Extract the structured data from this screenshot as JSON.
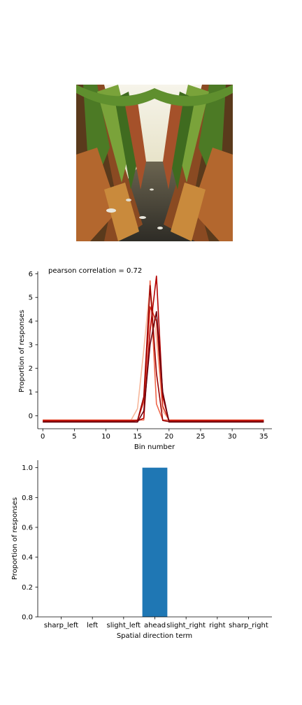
{
  "photo": {
    "description_icon": "cornfield-path-photo",
    "colors": {
      "sky": "#f4f1e6",
      "leaf_dark": "#3f6b1f",
      "leaf_light": "#8fb04a",
      "stalk": "#a5512a",
      "soil": "#3a3830"
    }
  },
  "chart_data": [
    {
      "type": "line",
      "title": "pearson correlation = 0.72",
      "xlabel": "Bin number",
      "ylabel": "Proportion of responses",
      "xlim": [
        -0.8,
        36.3
      ],
      "ylim": [
        -0.55,
        6.1
      ],
      "xticks": [
        "0",
        "5",
        "10",
        "15",
        "20",
        "25",
        "30",
        "35"
      ],
      "yticks": [
        "0",
        "1",
        "2",
        "3",
        "4",
        "5",
        "6"
      ],
      "grid": false,
      "legend": "none",
      "x": [
        0,
        1,
        2,
        3,
        4,
        5,
        6,
        7,
        8,
        9,
        10,
        11,
        12,
        13,
        14,
        15,
        16,
        17,
        18,
        19,
        20,
        21,
        22,
        23,
        24,
        25,
        26,
        27,
        28,
        29,
        30,
        31,
        32,
        33,
        34,
        35
      ],
      "series": [
        {
          "color": "#f7b79b",
          "values": [
            -0.18,
            -0.18,
            -0.18,
            -0.18,
            -0.18,
            -0.18,
            -0.18,
            -0.18,
            -0.18,
            -0.18,
            -0.18,
            -0.18,
            -0.18,
            -0.18,
            -0.18,
            0.3,
            2.8,
            5.5,
            3.2,
            0.2,
            -0.18,
            -0.18,
            -0.18,
            -0.18,
            -0.18,
            -0.18,
            -0.18,
            -0.18,
            -0.18,
            -0.18,
            -0.18,
            -0.18,
            -0.18,
            -0.18,
            -0.18,
            -0.18
          ]
        },
        {
          "color": "#ef6548",
          "values": [
            -0.18,
            -0.18,
            -0.18,
            -0.18,
            -0.18,
            -0.18,
            -0.18,
            -0.18,
            -0.18,
            -0.18,
            -0.18,
            -0.18,
            -0.18,
            -0.18,
            -0.18,
            -0.18,
            -0.18,
            5.7,
            0.5,
            -0.18,
            -0.18,
            -0.18,
            -0.18,
            -0.18,
            -0.18,
            -0.18,
            -0.18,
            -0.18,
            -0.18,
            -0.18,
            -0.18,
            -0.18,
            -0.18,
            -0.18,
            -0.18,
            -0.18
          ]
        },
        {
          "color": "#d7301f",
          "values": [
            -0.2,
            -0.2,
            -0.2,
            -0.2,
            -0.2,
            -0.2,
            -0.2,
            -0.2,
            -0.2,
            -0.2,
            -0.2,
            -0.2,
            -0.2,
            -0.2,
            -0.2,
            -0.2,
            0.6,
            4.6,
            4.0,
            0.4,
            -0.2,
            -0.2,
            -0.2,
            -0.2,
            -0.2,
            -0.2,
            -0.2,
            -0.2,
            -0.2,
            -0.2,
            -0.2,
            -0.2,
            -0.2,
            -0.2,
            -0.2,
            -0.2
          ]
        },
        {
          "color": "#b30000",
          "values": [
            -0.22,
            -0.22,
            -0.22,
            -0.22,
            -0.22,
            -0.22,
            -0.22,
            -0.22,
            -0.22,
            -0.22,
            -0.22,
            -0.22,
            -0.22,
            -0.22,
            -0.22,
            -0.22,
            -0.1,
            3.6,
            5.9,
            0.8,
            -0.22,
            -0.22,
            -0.22,
            -0.22,
            -0.22,
            -0.22,
            -0.22,
            -0.22,
            -0.22,
            -0.22,
            -0.22,
            -0.22,
            -0.22,
            -0.22,
            -0.22,
            -0.22
          ]
        },
        {
          "color": "#990000",
          "values": [
            -0.25,
            -0.25,
            -0.25,
            -0.25,
            -0.25,
            -0.25,
            -0.25,
            -0.25,
            -0.25,
            -0.25,
            -0.25,
            -0.25,
            -0.25,
            -0.25,
            -0.25,
            -0.2,
            0.8,
            5.5,
            1.8,
            -0.2,
            -0.25,
            -0.25,
            -0.25,
            -0.25,
            -0.25,
            -0.25,
            -0.25,
            -0.25,
            -0.25,
            -0.25,
            -0.25,
            -0.25,
            -0.25,
            -0.25,
            -0.25,
            -0.25
          ]
        },
        {
          "color": "#67000d",
          "values": [
            -0.27,
            -0.27,
            -0.27,
            -0.27,
            -0.27,
            -0.27,
            -0.27,
            -0.27,
            -0.27,
            -0.27,
            -0.27,
            -0.27,
            -0.27,
            -0.27,
            -0.27,
            -0.27,
            0.2,
            3.0,
            4.4,
            1.0,
            -0.27,
            -0.27,
            -0.27,
            -0.27,
            -0.27,
            -0.27,
            -0.27,
            -0.27,
            -0.27,
            -0.27,
            -0.27,
            -0.27,
            -0.27,
            -0.27,
            -0.27,
            -0.27
          ]
        }
      ]
    },
    {
      "type": "bar",
      "title": "",
      "xlabel": "Spatial direction term",
      "ylabel": "Proportion of responses",
      "categories": [
        "sharp_left",
        "left",
        "slight_left",
        "ahead",
        "slight_right",
        "right",
        "sharp_right"
      ],
      "values": [
        0,
        0,
        0,
        1.0,
        0,
        0,
        0
      ],
      "ylim": [
        0,
        1.05
      ],
      "yticks": [
        "0.0",
        "0.2",
        "0.4",
        "0.6",
        "0.8",
        "1.0"
      ],
      "bar_color": "#1f77b4",
      "grid": false,
      "legend": "none"
    }
  ]
}
